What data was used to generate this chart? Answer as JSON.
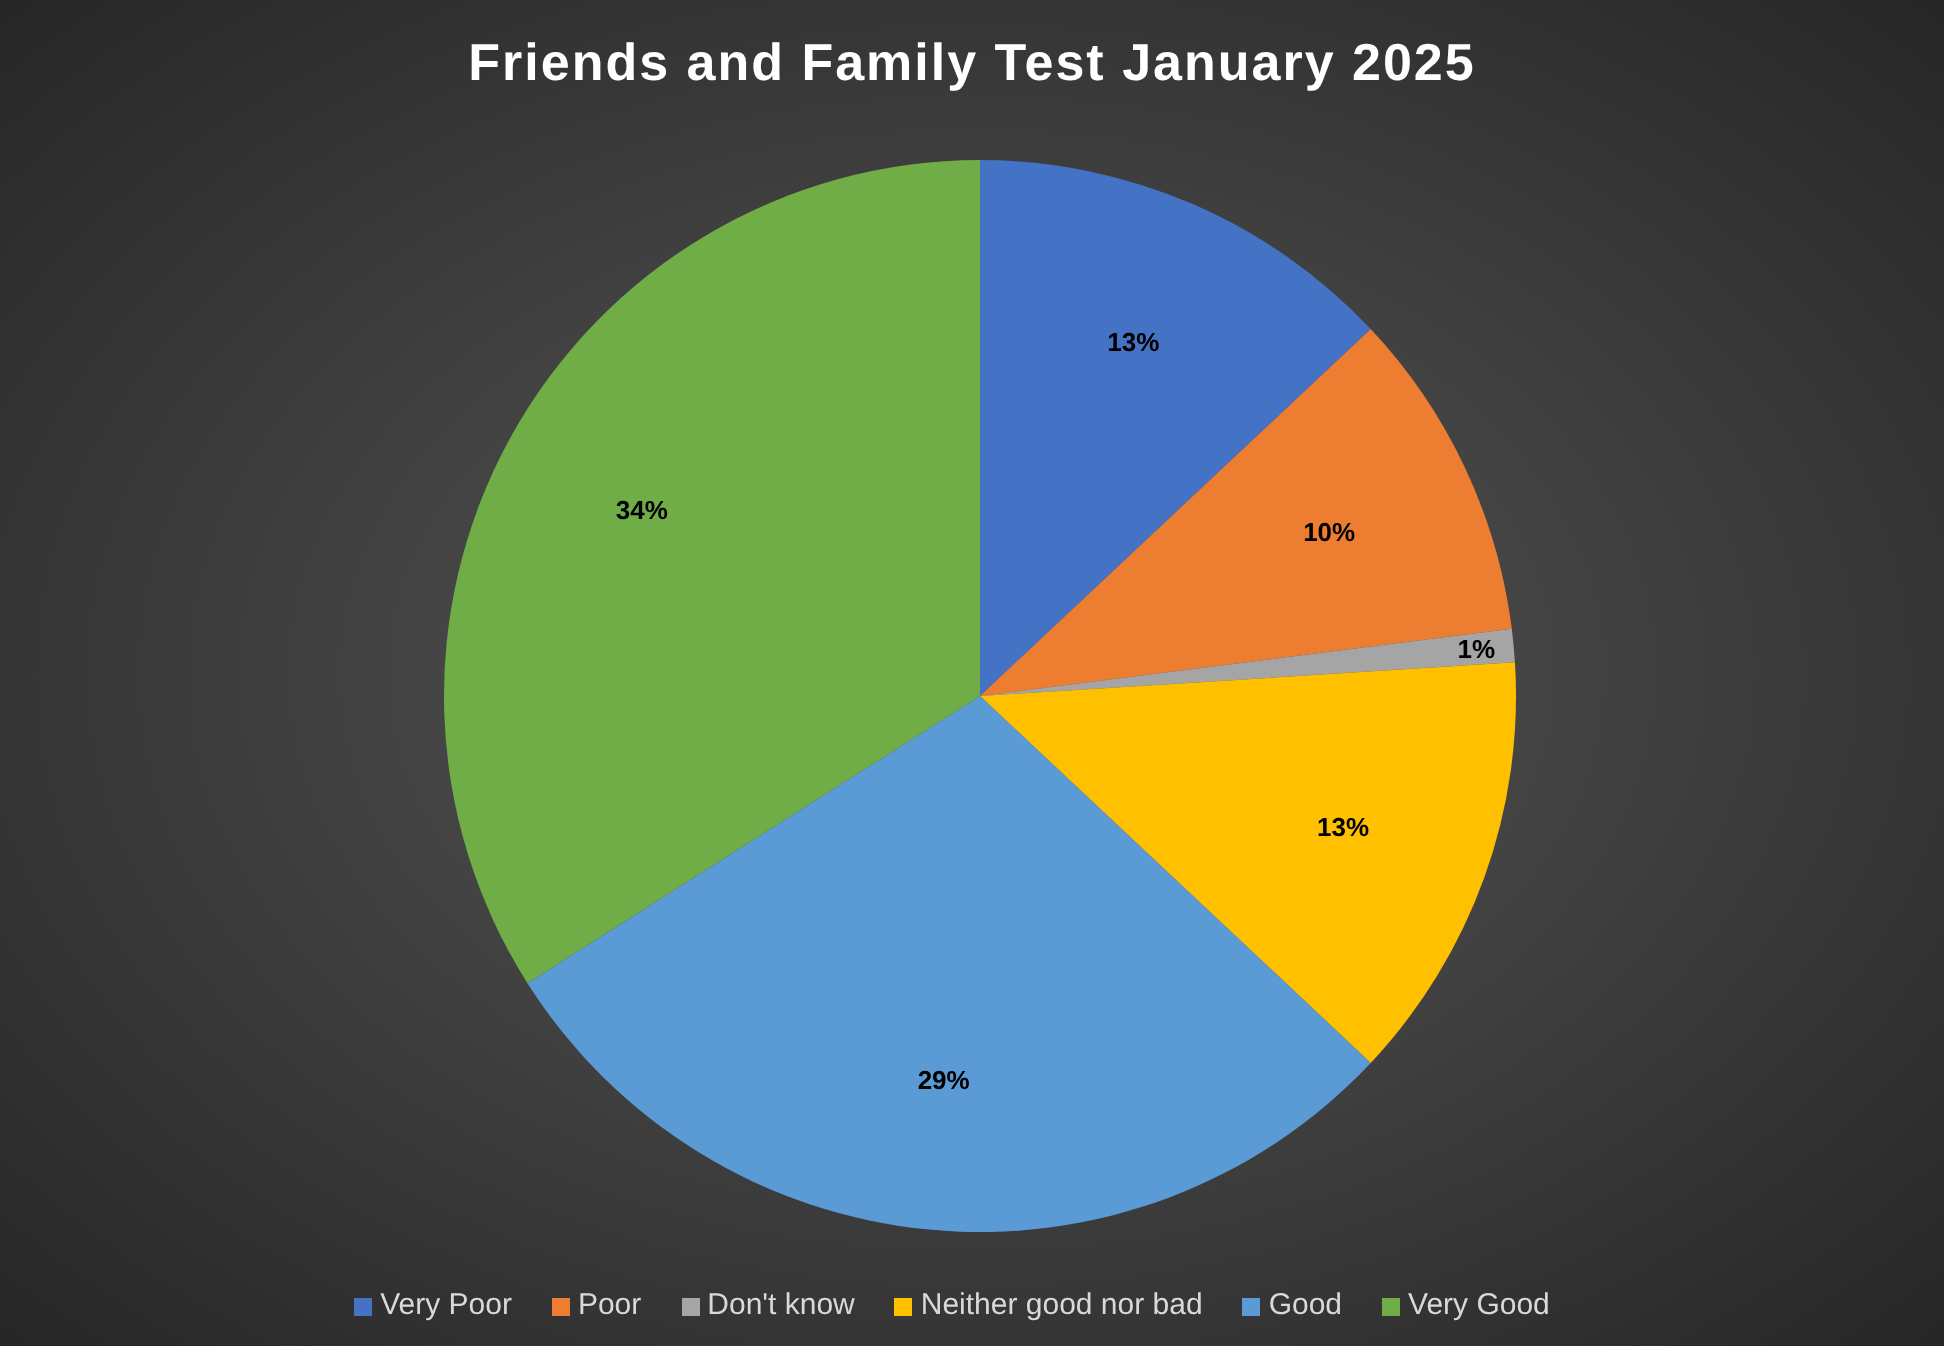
{
  "chart_data": {
    "type": "pie",
    "title": "Friends and Family Test January 2025",
    "categories": [
      "Very Poor",
      "Poor",
      "Don't know",
      "Neither good nor bad",
      "Good",
      "Very Good"
    ],
    "values": [
      13,
      10,
      1,
      13,
      29,
      34
    ],
    "value_labels": [
      "13%",
      "10%",
      "1%",
      "13%",
      "29%",
      "34%"
    ],
    "colors": [
      "#4472c4",
      "#ed7d31",
      "#a5a5a5",
      "#ffc000",
      "#5b9bd5",
      "#70ad47"
    ],
    "legend": "bottom"
  }
}
